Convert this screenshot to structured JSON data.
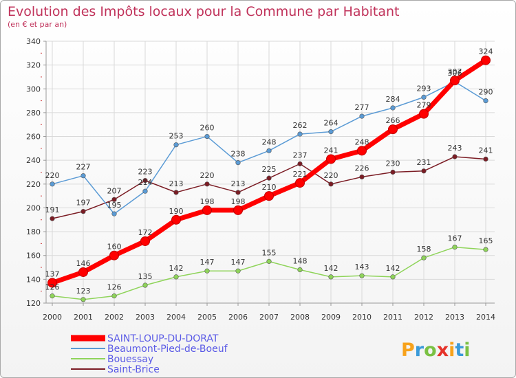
{
  "chart_data": {
    "type": "line",
    "title": "Evolution des Impôts locaux pour la Commune par Habitant",
    "subtitle": "(en € et par an)",
    "xlabel": "",
    "ylabel": "",
    "ylim": [
      120,
      340
    ],
    "y_ticks": [
      "120",
      "140",
      "160",
      "180",
      "200",
      "220",
      "240",
      "260",
      "280",
      "300",
      "320",
      "340"
    ],
    "x": [
      "2000",
      "2001",
      "2002",
      "2003",
      "2004",
      "2005",
      "2006",
      "2007",
      "2008",
      "2009",
      "2010",
      "2011",
      "2012",
      "2013",
      "2014"
    ],
    "grid": true,
    "legend_position": "bottom-left",
    "series": [
      {
        "name": "Saint-Brice",
        "color": "#7b1c24",
        "values": [
          191,
          197,
          207,
          223,
          213,
          220,
          213,
          225,
          237,
          220,
          226,
          230,
          231,
          243,
          241
        ],
        "labels": [
          "191",
          "197",
          "207",
          "223",
          "213",
          "220",
          "213",
          "225",
          "237",
          "220",
          "226",
          "230",
          "231",
          "243",
          "241"
        ]
      },
      {
        "name": "Bouessay",
        "color": "#8fd45a",
        "values": [
          126,
          123,
          126,
          135,
          142,
          147,
          147,
          155,
          148,
          142,
          143,
          142,
          158,
          167,
          165
        ],
        "labels": [
          "126",
          "123",
          "126",
          "135",
          "142",
          "147",
          "147",
          "155",
          "148",
          "142",
          "143",
          "142",
          "158",
          "167",
          "165"
        ]
      },
      {
        "name": "Beaumont-Pied-de-Boeuf",
        "color": "#5b9bd5",
        "values": [
          220,
          227,
          195,
          214,
          253,
          260,
          238,
          248,
          262,
          264,
          277,
          284,
          293,
          306,
          290
        ],
        "labels": [
          "220",
          "227",
          "195",
          "214",
          "253",
          "260",
          "238",
          "248",
          "262",
          "264",
          "277",
          "284",
          "293",
          "306",
          "290"
        ]
      },
      {
        "name": "SAINT-LOUP-DU-DORAT",
        "color": "#ff0000",
        "values": [
          137,
          146,
          160,
          172,
          190,
          198,
          198,
          210,
          221,
          241,
          248,
          266,
          279,
          307,
          324
        ],
        "labels": [
          "137",
          "146",
          "160",
          "172",
          "190",
          "198",
          "198",
          "210",
          "221",
          "241",
          "248",
          "266",
          "279",
          "307",
          "324"
        ]
      }
    ]
  },
  "legend": {
    "entries": [
      "SAINT-LOUP-DU-DORAT",
      "Beaumont-Pied-de-Boeuf",
      "Bouessay",
      "Saint-Brice"
    ]
  },
  "brand": {
    "name": "Proxiti",
    "letters": [
      "P",
      "r",
      "o",
      "x",
      "i",
      "t",
      "i"
    ],
    "colors": [
      "#f7a21b",
      "#3a9ad9",
      "#7ac143",
      "#e5332a",
      "#f7a21b",
      "#3a9ad9",
      "#7ac143"
    ]
  },
  "colors": {
    "title": "#c0325a",
    "axis_text": "#333333",
    "legend_text": "#5a5ae6",
    "grid": "#d9d9d9"
  }
}
